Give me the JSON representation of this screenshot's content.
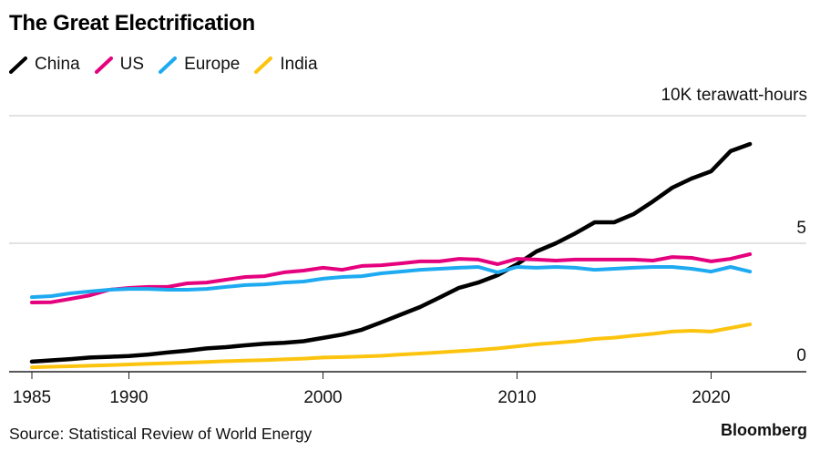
{
  "chart_data": {
    "type": "line",
    "title": "The Great Electrification",
    "xlabel": "",
    "ylabel": "10K terawatt-hours",
    "xlim": [
      1984,
      2025
    ],
    "ylim": [
      0,
      10
    ],
    "grid": true,
    "legend_position": "top-left",
    "x_ticks": [
      1985,
      1990,
      2000,
      2010,
      2020
    ],
    "y_ticks": [
      0,
      5,
      10
    ],
    "y_tick_labels": [
      "0",
      "5",
      ""
    ],
    "x": [
      1985,
      1986,
      1987,
      1988,
      1989,
      1990,
      1991,
      1992,
      1993,
      1994,
      1995,
      1996,
      1997,
      1998,
      1999,
      2000,
      2001,
      2002,
      2003,
      2004,
      2005,
      2006,
      2007,
      2008,
      2009,
      2010,
      2011,
      2012,
      2013,
      2014,
      2015,
      2016,
      2017,
      2018,
      2019,
      2020,
      2021,
      2022
    ],
    "series": [
      {
        "name": "China",
        "color": "#000000",
        "values": [
          0.36,
          0.41,
          0.46,
          0.52,
          0.55,
          0.58,
          0.64,
          0.72,
          0.79,
          0.88,
          0.93,
          1.0,
          1.06,
          1.1,
          1.16,
          1.29,
          1.42,
          1.61,
          1.9,
          2.2,
          2.5,
          2.87,
          3.25,
          3.46,
          3.75,
          4.18,
          4.68,
          5.0,
          5.39,
          5.82,
          5.82,
          6.14,
          6.64,
          7.18,
          7.54,
          7.82,
          8.61,
          8.89
        ]
      },
      {
        "name": "US",
        "color": "#e5007e",
        "values": [
          2.68,
          2.69,
          2.82,
          2.96,
          3.18,
          3.25,
          3.29,
          3.29,
          3.43,
          3.46,
          3.57,
          3.68,
          3.71,
          3.86,
          3.93,
          4.04,
          3.96,
          4.11,
          4.14,
          4.21,
          4.29,
          4.29,
          4.39,
          4.36,
          4.18,
          4.39,
          4.36,
          4.32,
          4.36,
          4.36,
          4.36,
          4.36,
          4.32,
          4.46,
          4.43,
          4.29,
          4.39,
          4.57
        ]
      },
      {
        "name": "Europe",
        "color": "#1eaaf1",
        "values": [
          2.89,
          2.93,
          3.04,
          3.11,
          3.18,
          3.21,
          3.21,
          3.18,
          3.18,
          3.21,
          3.29,
          3.36,
          3.39,
          3.46,
          3.5,
          3.61,
          3.68,
          3.71,
          3.82,
          3.89,
          3.96,
          4.0,
          4.04,
          4.07,
          3.86,
          4.07,
          4.04,
          4.07,
          4.04,
          3.96,
          4.0,
          4.04,
          4.07,
          4.07,
          4.0,
          3.89,
          4.07,
          3.89
        ]
      },
      {
        "name": "India",
        "color": "#fcc40f",
        "values": [
          0.14,
          0.16,
          0.18,
          0.2,
          0.22,
          0.25,
          0.28,
          0.3,
          0.32,
          0.35,
          0.38,
          0.4,
          0.42,
          0.45,
          0.48,
          0.52,
          0.54,
          0.56,
          0.59,
          0.64,
          0.68,
          0.72,
          0.77,
          0.82,
          0.88,
          0.96,
          1.04,
          1.1,
          1.16,
          1.25,
          1.3,
          1.38,
          1.45,
          1.54,
          1.57,
          1.54,
          1.68,
          1.82
        ]
      }
    ],
    "annotations": [
      "10K terawatt-hours"
    ]
  },
  "footer": {
    "source": "Source: Statistical Review of World Energy",
    "brand": "Bloomberg"
  }
}
